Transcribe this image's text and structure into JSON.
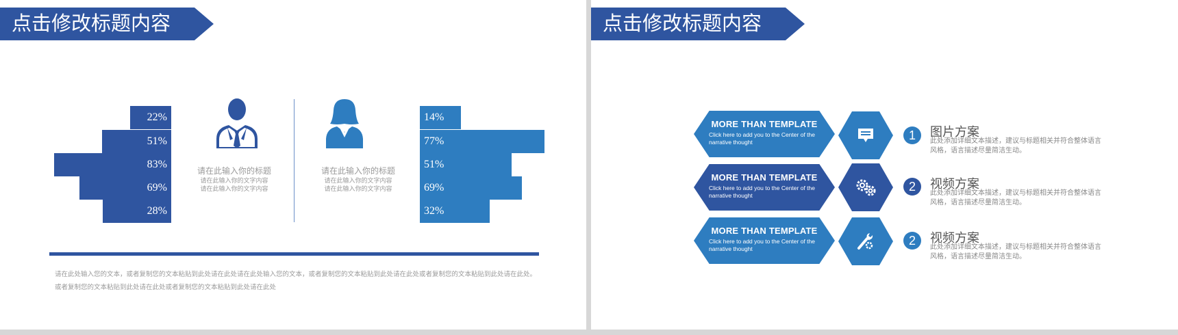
{
  "slide1": {
    "title": "点击修改标题内容",
    "left_bars": [
      {
        "label": "22%",
        "value": 22
      },
      {
        "label": "51%",
        "value": 51
      },
      {
        "label": "83%",
        "value": 83
      },
      {
        "label": "69%",
        "value": 69
      },
      {
        "label": "28%",
        "value": 28
      }
    ],
    "right_bars": [
      {
        "label": "14%",
        "value": 14
      },
      {
        "label": "77%",
        "value": 77
      },
      {
        "label": "51%",
        "value": 51
      },
      {
        "label": "69%",
        "value": 69
      },
      {
        "label": "32%",
        "value": 32
      }
    ],
    "male_caption": {
      "title": "请在此输入你的标题",
      "line1": "请在此输入你的文字内容",
      "line2": "请在此输入你的文字内容"
    },
    "female_caption": {
      "title": "请在此输入你的标题",
      "line1": "请在此输入你的文字内容",
      "line2": "请在此输入你的文字内容"
    },
    "footer_line1": "请在此处输入您的文本，或者复制您的文本粘贴到此处请在此处请在此处输入您的文本，或者复制您的文本粘贴到此处请在此处或者复制您的文本粘贴到此处请在此处。",
    "footer_line2": "或者复制您的文本粘贴到此处请在此处或者复制您的文本粘贴到此处请在此处",
    "colors": {
      "dark_blue": "#2f55a0",
      "light_blue": "#2e7dc0"
    },
    "icons": {
      "male": "businessman-icon",
      "female": "businesswoman-icon"
    }
  },
  "slide2": {
    "title": "点击修改标题内容",
    "items": [
      {
        "tag_title": "MORE THAN TEMPLATE",
        "tag_sub": "Click here to add  you to the Center of the narrative thought",
        "icon": "chat-icon",
        "number": "1",
        "title": "图片方案",
        "desc": "此处添加详细文本描述，建议与标题相关并符合整体语言风格，语言描述尽量简洁生动。",
        "color": "#2e7dc0"
      },
      {
        "tag_title": "MORE THAN TEMPLATE",
        "tag_sub": "Click here to add  you to the Center of the narrative thought",
        "icon": "gears-icon",
        "number": "2",
        "title": "视频方案",
        "desc": "此处添加详细文本描述，建议与标题相关并符合整体语言风格，语言描述尽量简洁生动。",
        "color": "#2f55a0"
      },
      {
        "tag_title": "MORE THAN TEMPLATE",
        "tag_sub": "Click here to add  you to the Center of the narrative thought",
        "icon": "tools-icon",
        "number": "2",
        "title": "视频方案",
        "desc": "此处添加详细文本描述，建议与标题相关并符合整体语言风格，语言描述尽量简洁生动。",
        "color": "#2e7dc0"
      }
    ]
  }
}
